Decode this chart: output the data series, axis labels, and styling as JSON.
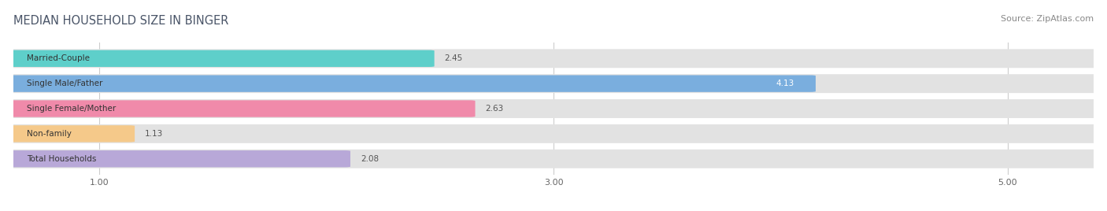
{
  "title": "MEDIAN HOUSEHOLD SIZE IN BINGER",
  "source": "Source: ZipAtlas.com",
  "categories": [
    "Married-Couple",
    "Single Male/Father",
    "Single Female/Mother",
    "Non-family",
    "Total Households"
  ],
  "values": [
    2.45,
    4.13,
    2.63,
    1.13,
    2.08
  ],
  "bar_colors": [
    "#5ecfca",
    "#7aaede",
    "#f08aaa",
    "#f5c98a",
    "#b8a8d8"
  ],
  "bar_bg_color": "#e2e2e2",
  "label_colors": [
    "#333333",
    "#ffffff",
    "#333333",
    "#333333",
    "#333333"
  ],
  "xlim_min": 0.62,
  "xlim_max": 5.38,
  "xticks": [
    1.0,
    3.0,
    5.0
  ],
  "bar_height": 0.62,
  "bar_gap": 0.15,
  "title_fontsize": 10.5,
  "source_fontsize": 8,
  "label_fontsize": 7.5,
  "value_fontsize": 7.5,
  "tick_fontsize": 8,
  "bg_color": "#ffffff",
  "title_color": "#4a5568"
}
